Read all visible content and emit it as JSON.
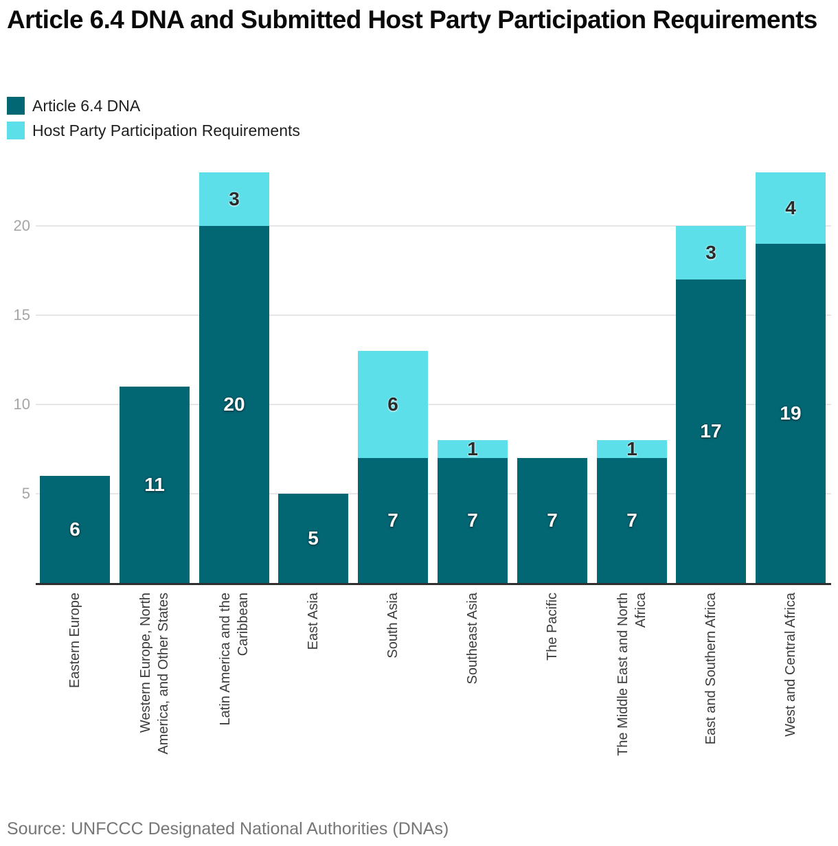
{
  "title": "Article 6.4 DNA and Submitted Host Party Participation Requirements",
  "legend": {
    "items": [
      {
        "label": "Article 6.4 DNA",
        "color": "#036673"
      },
      {
        "label": "Host Party Participation Requirements",
        "color": "#5ddfe9"
      }
    ]
  },
  "source": "Source: UNFCCC Designated National Authorities (DNAs)",
  "chart_data": {
    "type": "bar",
    "stacked": true,
    "title": "Article 6.4 DNA and Submitted Host Party Participation Requirements",
    "xlabel": "",
    "ylabel": "",
    "ylim": [
      0,
      23
    ],
    "yticks": [
      5,
      10,
      15,
      20
    ],
    "grid": "horizontal",
    "legend_position": "top-left",
    "categories": [
      "Eastern Europe",
      "Western Europe, North America, and Other States",
      "Latin America and the Caribbean",
      "East Asia",
      "South Asia",
      "Southeast Asia",
      "The Pacific",
      "The Middle East and North Africa",
      "East and Southern Africa",
      "West and Central Africa"
    ],
    "category_lines": [
      [
        "Eastern Europe"
      ],
      [
        "Western Europe, North",
        "America, and Other States"
      ],
      [
        "Latin America and the",
        "Caribbean"
      ],
      [
        "East Asia"
      ],
      [
        "South Asia"
      ],
      [
        "Southeast Asia"
      ],
      [
        "The Pacific"
      ],
      [
        "The Middle East and North",
        "Africa"
      ],
      [
        "East and Southern Africa"
      ],
      [
        "West and Central Africa"
      ]
    ],
    "series": [
      {
        "name": "Article 6.4 DNA",
        "color": "#036673",
        "values": [
          6,
          11,
          20,
          5,
          7,
          7,
          7,
          7,
          17,
          19
        ]
      },
      {
        "name": "Host Party Participation Requirements",
        "color": "#5ddfe9",
        "values": [
          0,
          0,
          3,
          0,
          6,
          1,
          0,
          1,
          3,
          4
        ]
      }
    ]
  }
}
